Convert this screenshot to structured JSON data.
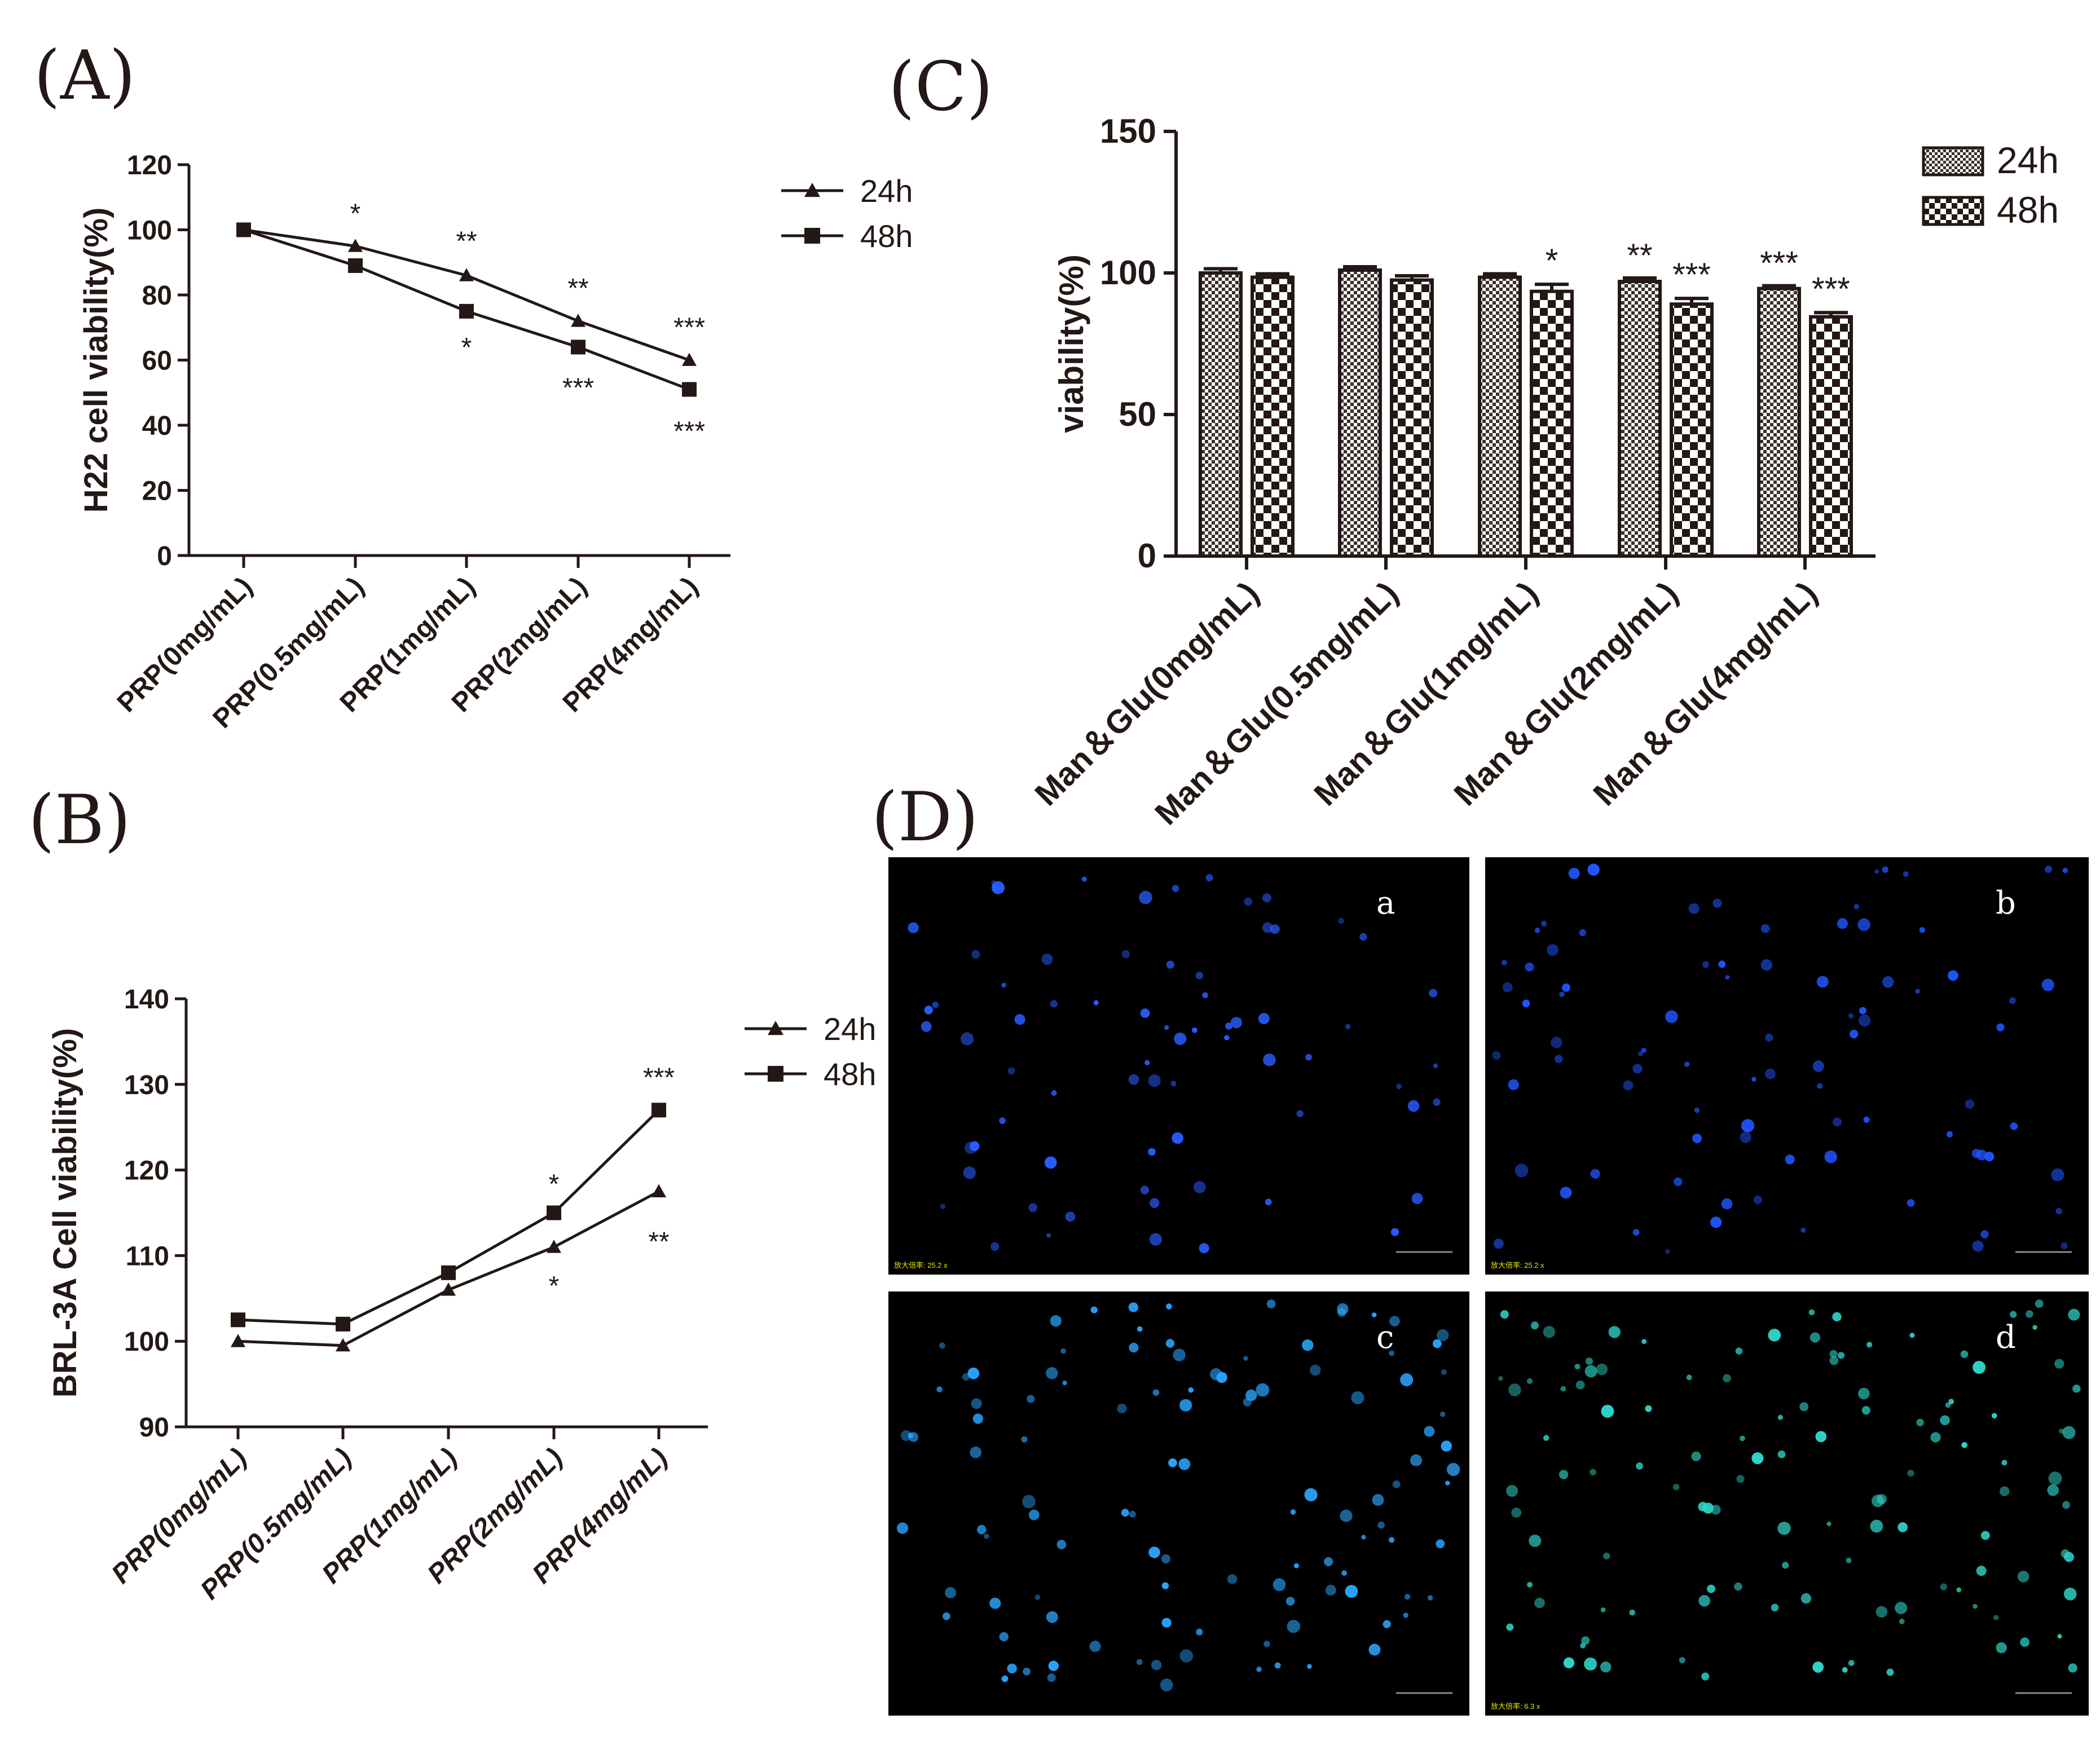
{
  "panel_letters": {
    "a": "(A)",
    "b": "(B)",
    "c": "(C)",
    "d": "(D)"
  },
  "micrograph_labels": [
    "a",
    "b",
    "c",
    "d"
  ],
  "micrograph_captions": [
    "放大倍率: 25.2 x",
    "放大倍率: 25.2 x",
    "",
    "放大倍率: 6.3 x"
  ],
  "micrograph_colors": [
    "#2a5cff",
    "#1f55ff",
    "#2aa6ff",
    "#2fd4c8"
  ],
  "colors": {
    "ink": "#231815",
    "background": "#ffffff",
    "micrograph_bg": "#000000"
  },
  "chart_data": [
    {
      "type": "line",
      "panel": "A",
      "ylabel": "H22 cell viability(%)",
      "categories": [
        "PRP(0mg/mL)",
        "PRP(0.5mg/mL)",
        "PRP(1mg/mL)",
        "PRP(2mg/mL)",
        "PRP(4mg/mL)"
      ],
      "ylim": [
        0,
        120
      ],
      "yticks": [
        0,
        20,
        40,
        60,
        80,
        100,
        120
      ],
      "legend_position": "top-right",
      "series": [
        {
          "name": "24h",
          "marker": "triangle",
          "values": [
            100,
            95,
            86,
            72,
            60
          ],
          "significance": [
            "",
            "*",
            "**",
            "**",
            "***"
          ]
        },
        {
          "name": "48h",
          "marker": "square",
          "values": [
            100,
            89,
            75,
            64,
            51
          ],
          "significance": [
            "",
            "",
            "*",
            "***",
            "***"
          ]
        }
      ]
    },
    {
      "type": "line",
      "panel": "B",
      "ylabel": "BRL-3A Cell viability(%)",
      "categories": [
        "PRP(0mg/mL)",
        "PRP(0.5mg/mL)",
        "PRP(1mg/mL)",
        "PRP(2mg/mL)",
        "PRP(4mg/mL)"
      ],
      "ylim": [
        90,
        140
      ],
      "yticks": [
        90,
        100,
        110,
        120,
        130,
        140
      ],
      "legend_position": "top-right",
      "series": [
        {
          "name": "24h",
          "marker": "triangle",
          "values": [
            100,
            99.5,
            106,
            111,
            117.5
          ],
          "significance": [
            "",
            "",
            "",
            "*",
            "**"
          ]
        },
        {
          "name": "48h",
          "marker": "square",
          "values": [
            102.5,
            102,
            108,
            115,
            127
          ],
          "significance": [
            "",
            "",
            "",
            "*",
            "***"
          ]
        }
      ]
    },
    {
      "type": "bar",
      "panel": "C",
      "ylabel": "viability(%)",
      "categories": [
        "Man＆Glu(0mg/mL)",
        "Man＆Glu(0.5mg/mL)",
        "Man＆Glu(1mg/mL)",
        "Man＆Glu(2mg/mL)",
        "Man＆Glu(4mg/mL)"
      ],
      "ylim": [
        0,
        150
      ],
      "yticks": [
        0,
        50,
        100,
        150
      ],
      "legend_position": "top-right",
      "series": [
        {
          "name": "24h",
          "pattern": "fine-checker",
          "values": [
            100,
            101,
            98.5,
            97,
            94.5
          ],
          "errors": [
            1.5,
            1.2,
            1.2,
            1.2,
            1.0
          ],
          "significance": [
            "",
            "",
            "",
            "**",
            "***"
          ]
        },
        {
          "name": "48h",
          "pattern": "coarse-checker",
          "values": [
            98.5,
            97.5,
            93.5,
            89,
            84.5
          ],
          "errors": [
            1.2,
            1.5,
            2.5,
            2.0,
            1.5
          ],
          "significance": [
            "",
            "",
            "*",
            "***",
            "***"
          ]
        }
      ]
    }
  ]
}
